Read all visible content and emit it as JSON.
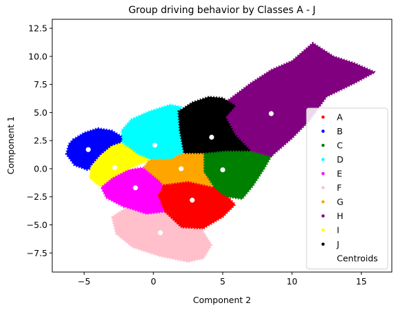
{
  "chart_data": {
    "type": "scatter",
    "title": "Group driving behavior by Classes A - J",
    "xlabel": "Component 2",
    "ylabel": "Component 1",
    "xlim": [
      -7.3,
      17.2
    ],
    "ylim": [
      -9.2,
      13.3
    ],
    "xticks": [
      -5,
      0,
      5,
      10,
      15
    ],
    "yticks": [
      -7.5,
      -5.0,
      -2.5,
      0.0,
      2.5,
      5.0,
      7.5,
      10.0,
      12.5
    ],
    "xtick_labels": [
      "−5",
      "0",
      "5",
      "10",
      "15"
    ],
    "ytick_labels": [
      "−7.5",
      "−5.0",
      "−2.5",
      "0.0",
      "2.5",
      "5.0",
      "7.5",
      "10.0",
      "12.5"
    ],
    "grid": false,
    "legend": {
      "placement": "lower-right",
      "centroid_label": "Centroids"
    },
    "series": [
      {
        "name": "A",
        "color": "#ff0000",
        "centroid": [
          2.8,
          -2.8
        ],
        "region": [
          [
            0.7,
            -1.4
          ],
          [
            2.5,
            -1.1
          ],
          [
            4.3,
            -1.6
          ],
          [
            5.3,
            -2.4
          ],
          [
            5.9,
            -3.2
          ],
          [
            5.0,
            -4.3
          ],
          [
            3.5,
            -5.4
          ],
          [
            2.0,
            -5.3
          ],
          [
            0.8,
            -3.9
          ],
          [
            0.3,
            -2.4
          ]
        ]
      },
      {
        "name": "B",
        "color": "#0000ff",
        "centroid": [
          -4.7,
          1.7
        ],
        "region": [
          [
            -5.8,
            2.6
          ],
          [
            -5.0,
            3.2
          ],
          [
            -4.0,
            3.6
          ],
          [
            -3.0,
            3.4
          ],
          [
            -2.2,
            2.8
          ],
          [
            -2.3,
            2.3
          ],
          [
            -3.0,
            1.5
          ],
          [
            -3.9,
            0.3
          ],
          [
            -4.8,
            -0.1
          ],
          [
            -5.7,
            0.3
          ],
          [
            -6.3,
            1.3
          ],
          [
            -6.1,
            2.2
          ]
        ]
      },
      {
        "name": "C",
        "color": "#008000",
        "centroid": [
          5.0,
          -0.1
        ],
        "region": [
          [
            3.6,
            1.4
          ],
          [
            5.2,
            1.6
          ],
          [
            7.0,
            1.6
          ],
          [
            8.5,
            1.1
          ],
          [
            8.0,
            0.0
          ],
          [
            7.2,
            -1.5
          ],
          [
            6.4,
            -2.7
          ],
          [
            5.3,
            -2.5
          ],
          [
            4.3,
            -1.6
          ],
          [
            3.6,
            -0.3
          ]
        ]
      },
      {
        "name": "D",
        "color": "#00ffff",
        "centroid": [
          0.1,
          2.1
        ],
        "region": [
          [
            -2.2,
            2.0
          ],
          [
            -2.3,
            3.4
          ],
          [
            -1.6,
            4.4
          ],
          [
            -0.3,
            5.1
          ],
          [
            1.2,
            5.7
          ],
          [
            2.0,
            5.5
          ],
          [
            1.9,
            3.4
          ],
          [
            2.2,
            1.4
          ],
          [
            1.2,
            0.8
          ],
          [
            -0.3,
            0.8
          ],
          [
            -1.2,
            1.3
          ]
        ]
      },
      {
        "name": "E",
        "color": "#ff00ff",
        "centroid": [
          -1.3,
          -1.7
        ],
        "region": [
          [
            -3.0,
            -0.8
          ],
          [
            -1.9,
            -0.1
          ],
          [
            -0.7,
            0.1
          ],
          [
            0.4,
            -1.0
          ],
          [
            0.7,
            -1.4
          ],
          [
            0.3,
            -2.4
          ],
          [
            0.8,
            -3.9
          ],
          [
            -0.5,
            -4.1
          ],
          [
            -2.0,
            -3.5
          ],
          [
            -3.4,
            -2.6
          ],
          [
            -3.8,
            -1.6
          ]
        ]
      },
      {
        "name": "F",
        "color": "#ffc0cb",
        "centroid": [
          0.5,
          -5.7
        ],
        "region": [
          [
            -3.0,
            -4.3
          ],
          [
            -2.0,
            -3.5
          ],
          [
            -0.5,
            -4.1
          ],
          [
            0.8,
            -3.9
          ],
          [
            2.0,
            -5.3
          ],
          [
            3.5,
            -5.4
          ],
          [
            4.2,
            -6.8
          ],
          [
            3.6,
            -8.0
          ],
          [
            2.5,
            -8.3
          ],
          [
            0.5,
            -7.8
          ],
          [
            -1.5,
            -7.0
          ],
          [
            -2.7,
            -5.8
          ]
        ]
      },
      {
        "name": "G",
        "color": "#ffa500",
        "centroid": [
          2.0,
          0.0
        ],
        "region": [
          [
            -0.3,
            0.8
          ],
          [
            1.2,
            0.8
          ],
          [
            2.2,
            1.4
          ],
          [
            3.6,
            1.4
          ],
          [
            3.6,
            -0.3
          ],
          [
            4.3,
            -1.6
          ],
          [
            2.5,
            -1.1
          ],
          [
            0.7,
            -1.4
          ],
          [
            0.4,
            -1.0
          ],
          [
            -0.7,
            0.1
          ]
        ]
      },
      {
        "name": "H",
        "color": "#800080",
        "centroid": [
          8.5,
          4.9
        ],
        "region": [
          [
            4.3,
            5.1
          ],
          [
            5.5,
            6.2
          ],
          [
            7.0,
            7.6
          ],
          [
            8.5,
            8.8
          ],
          [
            10.0,
            9.6
          ],
          [
            11.5,
            11.2
          ],
          [
            13.0,
            10.0
          ],
          [
            14.5,
            9.4
          ],
          [
            16.0,
            8.6
          ],
          [
            14.5,
            7.6
          ],
          [
            12.5,
            6.4
          ],
          [
            11.2,
            4.2
          ],
          [
            10.0,
            2.7
          ],
          [
            8.5,
            1.1
          ],
          [
            7.0,
            1.6
          ],
          [
            5.9,
            3.0
          ],
          [
            5.2,
            4.6
          ]
        ]
      },
      {
        "name": "I",
        "color": "#ffff00",
        "centroid": [
          -2.8,
          0.1
        ],
        "region": [
          [
            -4.5,
            0.2
          ],
          [
            -3.8,
            1.2
          ],
          [
            -3.0,
            2.0
          ],
          [
            -2.3,
            2.3
          ],
          [
            -1.2,
            1.3
          ],
          [
            -0.3,
            0.8
          ],
          [
            -1.9,
            -0.1
          ],
          [
            -3.0,
            -0.8
          ],
          [
            -3.8,
            -1.6
          ],
          [
            -4.6,
            -0.8
          ]
        ]
      },
      {
        "name": "J",
        "color": "#000000",
        "centroid": [
          4.2,
          2.8
        ],
        "region": [
          [
            1.8,
            5.1
          ],
          [
            2.8,
            5.9
          ],
          [
            4.0,
            6.4
          ],
          [
            5.0,
            6.3
          ],
          [
            5.9,
            5.6
          ],
          [
            5.2,
            4.6
          ],
          [
            5.9,
            3.0
          ],
          [
            7.0,
            1.6
          ],
          [
            5.2,
            1.6
          ],
          [
            3.6,
            1.4
          ],
          [
            2.2,
            1.4
          ],
          [
            1.9,
            3.4
          ]
        ]
      }
    ]
  }
}
